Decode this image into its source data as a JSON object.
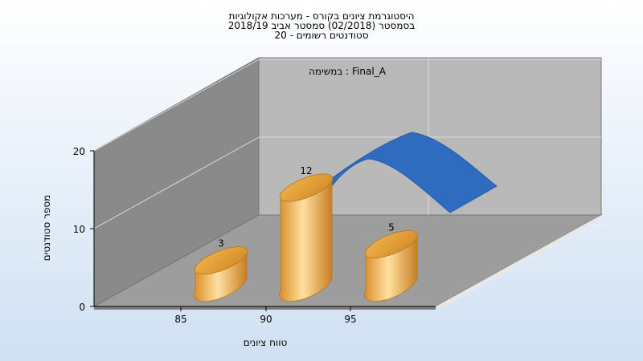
{
  "chart_data": {
    "type": "bar",
    "title_lines": [
      "היסטוגרמת ציונים בקורס - מערכות אקולוגיות",
      "בסמסטר  (02/2018)  סמסטר אביב 2018/19",
      "סטודנטים רשומים - 20"
    ],
    "xlabel": "טווח ציונים",
    "ylabel": "מספר סטודנטים",
    "annotation": "במשימה : Final_A",
    "categories": [
      "85",
      "90",
      "95"
    ],
    "x_ticks": [
      "85",
      "90",
      "95"
    ],
    "y_ticks": [
      "0",
      "10",
      "20"
    ],
    "ylim": [
      0,
      20
    ],
    "values": [
      3,
      12,
      5
    ],
    "data_labels": [
      "3",
      "12",
      "5"
    ],
    "grid": true,
    "colors": {
      "bar": "#E8A23C",
      "bar_light": "#FFE0A0",
      "curve": "#2F6BBE",
      "back_wall": "#B8B8B8",
      "side_wall": "#888888",
      "floor": "#9C9C9C",
      "background_top": "#FFFFFF",
      "background_bottom": "#CFE0F3"
    }
  }
}
